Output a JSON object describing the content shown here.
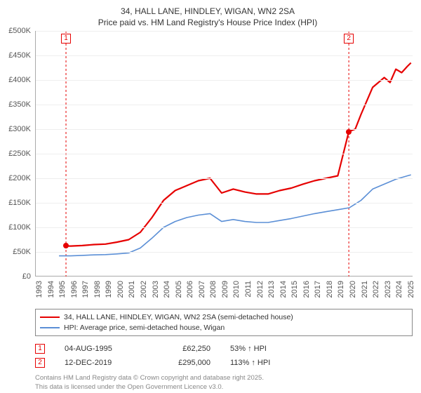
{
  "title": {
    "line1": "34, HALL LANE, HINDLEY, WIGAN, WN2 2SA",
    "line2": "Price paid vs. HM Land Registry's House Price Index (HPI)"
  },
  "chart": {
    "type": "line",
    "background_color": "#ffffff",
    "grid_color": "#eeeeee",
    "axis_color": "#aaaaaa",
    "tick_fontsize": 11,
    "tick_color": "#555555",
    "ylim": [
      0,
      500000
    ],
    "ytick_step": 50000,
    "ytick_labels": [
      "£0",
      "£50K",
      "£100K",
      "£150K",
      "£200K",
      "£250K",
      "£300K",
      "£350K",
      "£400K",
      "£450K",
      "£500K"
    ],
    "x_years": [
      1993,
      1994,
      1995,
      1996,
      1997,
      1998,
      1999,
      2000,
      2001,
      2002,
      2003,
      2004,
      2005,
      2006,
      2007,
      2008,
      2009,
      2010,
      2011,
      2012,
      2013,
      2014,
      2015,
      2016,
      2017,
      2018,
      2019,
      2020,
      2021,
      2022,
      2023,
      2024,
      2025
    ],
    "xlim": [
      1993,
      2025.5
    ],
    "series": [
      {
        "name": "34, HALL LANE, HINDLEY, WIGAN, WN2 2SA (semi-detached house)",
        "color": "#e60000",
        "line_width": 2.2,
        "points": [
          [
            1995.6,
            62250
          ],
          [
            1996,
            62000
          ],
          [
            1997,
            63000
          ],
          [
            1998,
            65000
          ],
          [
            1999,
            66000
          ],
          [
            2000,
            70000
          ],
          [
            2001,
            75000
          ],
          [
            2002,
            90000
          ],
          [
            2003,
            120000
          ],
          [
            2004,
            155000
          ],
          [
            2005,
            175000
          ],
          [
            2006,
            185000
          ],
          [
            2007,
            195000
          ],
          [
            2008,
            200000
          ],
          [
            2009,
            170000
          ],
          [
            2010,
            178000
          ],
          [
            2011,
            172000
          ],
          [
            2012,
            168000
          ],
          [
            2013,
            168000
          ],
          [
            2014,
            175000
          ],
          [
            2015,
            180000
          ],
          [
            2016,
            188000
          ],
          [
            2017,
            195000
          ],
          [
            2018,
            200000
          ],
          [
            2019,
            205000
          ],
          [
            2019.95,
            295000
          ],
          [
            2020.5,
            300000
          ],
          [
            2021,
            330000
          ],
          [
            2022,
            385000
          ],
          [
            2022.5,
            395000
          ],
          [
            2023,
            405000
          ],
          [
            2023.5,
            395000
          ],
          [
            2024,
            422000
          ],
          [
            2024.5,
            415000
          ],
          [
            2025,
            428000
          ],
          [
            2025.3,
            435000
          ]
        ]
      },
      {
        "name": "HPI: Average price, semi-detached house, Wigan",
        "color": "#5b8fd6",
        "line_width": 1.6,
        "points": [
          [
            1995,
            42000
          ],
          [
            1996,
            42000
          ],
          [
            1997,
            43000
          ],
          [
            1998,
            44000
          ],
          [
            1999,
            44500
          ],
          [
            2000,
            46000
          ],
          [
            2001,
            48000
          ],
          [
            2002,
            58000
          ],
          [
            2003,
            78000
          ],
          [
            2004,
            100000
          ],
          [
            2005,
            112000
          ],
          [
            2006,
            120000
          ],
          [
            2007,
            125000
          ],
          [
            2008,
            128000
          ],
          [
            2009,
            112000
          ],
          [
            2010,
            116000
          ],
          [
            2011,
            112000
          ],
          [
            2012,
            110000
          ],
          [
            2013,
            110000
          ],
          [
            2014,
            114000
          ],
          [
            2015,
            118000
          ],
          [
            2016,
            123000
          ],
          [
            2017,
            128000
          ],
          [
            2018,
            132000
          ],
          [
            2019,
            136000
          ],
          [
            2020,
            140000
          ],
          [
            2021,
            155000
          ],
          [
            2022,
            178000
          ],
          [
            2023,
            188000
          ],
          [
            2024,
            198000
          ],
          [
            2025,
            205000
          ],
          [
            2025.3,
            207000
          ]
        ]
      }
    ],
    "sale_markers": [
      {
        "n": "1",
        "year": 1995.6,
        "price": 62250
      },
      {
        "n": "2",
        "year": 2019.95,
        "price": 295000
      }
    ],
    "marker_color": "#e60000",
    "marker_dash": "3,3"
  },
  "legend": {
    "border_color": "#888888",
    "fontsize": 10.5,
    "items": [
      {
        "label": "34, HALL LANE, HINDLEY, WIGAN, WN2 2SA (semi-detached house)",
        "color": "#e60000",
        "width": 2.2
      },
      {
        "label": "HPI: Average price, semi-detached house, Wigan",
        "color": "#5b8fd6",
        "width": 1.6
      }
    ]
  },
  "sales": [
    {
      "n": "1",
      "date": "04-AUG-1995",
      "price": "£62,250",
      "hpi": "53% ↑ HPI"
    },
    {
      "n": "2",
      "date": "12-DEC-2019",
      "price": "£295,000",
      "hpi": "113% ↑ HPI"
    }
  ],
  "footer": {
    "line1": "Contains HM Land Registry data © Crown copyright and database right 2025.",
    "line2": "This data is licensed under the Open Government Licence v3.0."
  }
}
